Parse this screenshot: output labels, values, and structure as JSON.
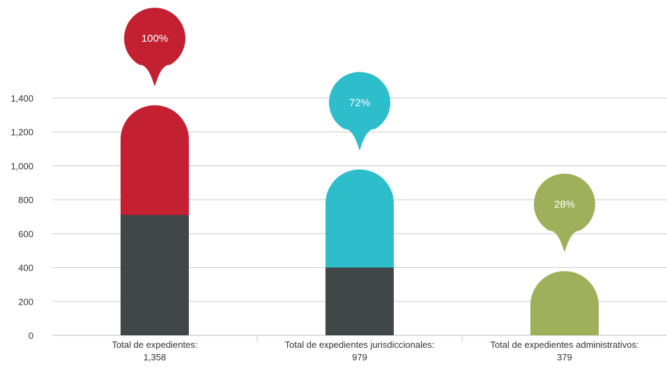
{
  "chart_data": {
    "type": "bar",
    "stacked": true,
    "categories": [
      {
        "label": "Total de expedientes:",
        "value_label": "1,358"
      },
      {
        "label": "Total de expedientes jurisdiccionales:",
        "value_label": "979"
      },
      {
        "label": "Total de expedientes administrativos:",
        "value_label": "379"
      }
    ],
    "totals": [
      1358,
      979,
      379
    ],
    "segments": [
      {
        "dark": 710,
        "color": "#c32031"
      },
      {
        "dark": 400,
        "color": "#2dbdcb"
      },
      {
        "dark": 0,
        "color": "#9fb05a"
      }
    ],
    "dark_color": "#414749",
    "bubbles": [
      {
        "label": "100%",
        "color": "#c32031"
      },
      {
        "label": "72%",
        "color": "#2dbdcb"
      },
      {
        "label": "28%",
        "color": "#9fb05a"
      }
    ],
    "y_ticks": [
      "0",
      "200",
      "400",
      "600",
      "800",
      "1,000",
      "1,200",
      "1,400"
    ],
    "y_tick_values": [
      0,
      200,
      400,
      600,
      800,
      1000,
      1200,
      1400
    ],
    "ylim": [
      0,
      1400
    ],
    "grid": true,
    "legend": "none"
  }
}
